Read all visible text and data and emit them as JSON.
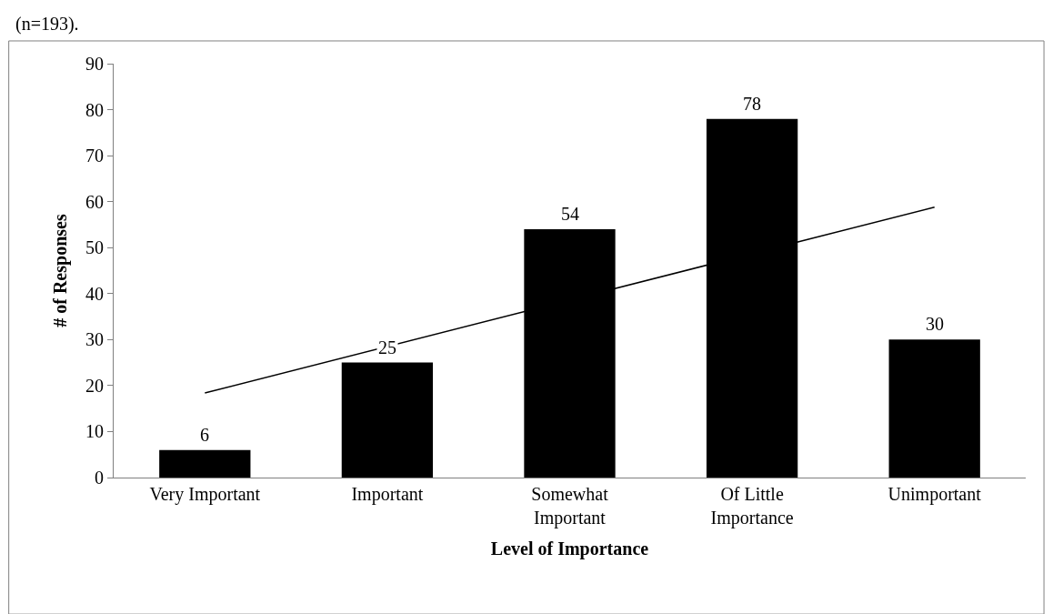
{
  "chart_data": {
    "type": "bar",
    "xlabel": "Level of Importance",
    "ylabel": "# of Responses",
    "annotations": [
      "(n=193)."
    ],
    "categories": [
      "Very Important",
      "Important",
      "Somewhat Important",
      "Of Little Importance",
      "Unimportant"
    ],
    "series": [
      {
        "color": "#000000",
        "values": [
          6,
          25,
          54,
          78,
          30
        ],
        "value_labels": [
          "6",
          "25",
          "54",
          "78",
          "30"
        ]
      },
      {
        "type": "line",
        "color": "#000000",
        "x": [
          "Very Important",
          "Unimportant"
        ],
        "values": [
          18.4,
          58.8
        ]
      }
    ],
    "ylim": [
      0,
      90
    ],
    "yticks": [
      0,
      10,
      20,
      30,
      40,
      50,
      60,
      70,
      80,
      90
    ]
  }
}
